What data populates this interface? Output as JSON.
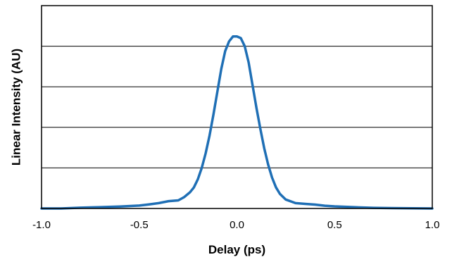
{
  "chart_data": {
    "type": "line",
    "title": "",
    "xlabel": "Delay (ps)",
    "ylabel": "Linear Intensity (AU)",
    "xlim": [
      -1.0,
      1.0
    ],
    "ylim": [
      0,
      1.25
    ],
    "x_tick_labels": [
      "-1.0",
      "-0.5",
      "0.0",
      "0.5",
      "1.0"
    ],
    "x_ticks": [
      -1.0,
      -0.5,
      0.0,
      0.5,
      1.0
    ],
    "y_gridlines": [
      0.25,
      0.5,
      0.75,
      1.0
    ],
    "y_tick_labels_shown": false,
    "grid": "horizontal",
    "legend": "none",
    "line_color": "#1f6fb5",
    "series": [
      {
        "x": [
          -1.0,
          -0.9,
          -0.8,
          -0.7,
          -0.6,
          -0.5,
          -0.45,
          -0.4,
          -0.35,
          -0.3,
          -0.27,
          -0.24,
          -0.22,
          -0.2,
          -0.18,
          -0.16,
          -0.14,
          -0.12,
          -0.1,
          -0.08,
          -0.06,
          -0.04,
          -0.02,
          0.0,
          0.02,
          0.04,
          0.06,
          0.08,
          0.1,
          0.12,
          0.14,
          0.16,
          0.18,
          0.2,
          0.22,
          0.25,
          0.3,
          0.35,
          0.4,
          0.45,
          0.5,
          0.6,
          0.7,
          0.8,
          0.9,
          1.0
        ],
        "y": [
          0.0,
          0.0,
          0.005,
          0.008,
          0.012,
          0.018,
          0.025,
          0.033,
          0.045,
          0.05,
          0.07,
          0.1,
          0.13,
          0.18,
          0.25,
          0.34,
          0.45,
          0.58,
          0.72,
          0.86,
          0.97,
          1.03,
          1.06,
          1.06,
          1.05,
          1.0,
          0.9,
          0.76,
          0.62,
          0.49,
          0.37,
          0.27,
          0.19,
          0.13,
          0.09,
          0.055,
          0.033,
          0.028,
          0.024,
          0.017,
          0.013,
          0.008,
          0.004,
          0.002,
          0.001,
          0.0
        ]
      }
    ]
  }
}
